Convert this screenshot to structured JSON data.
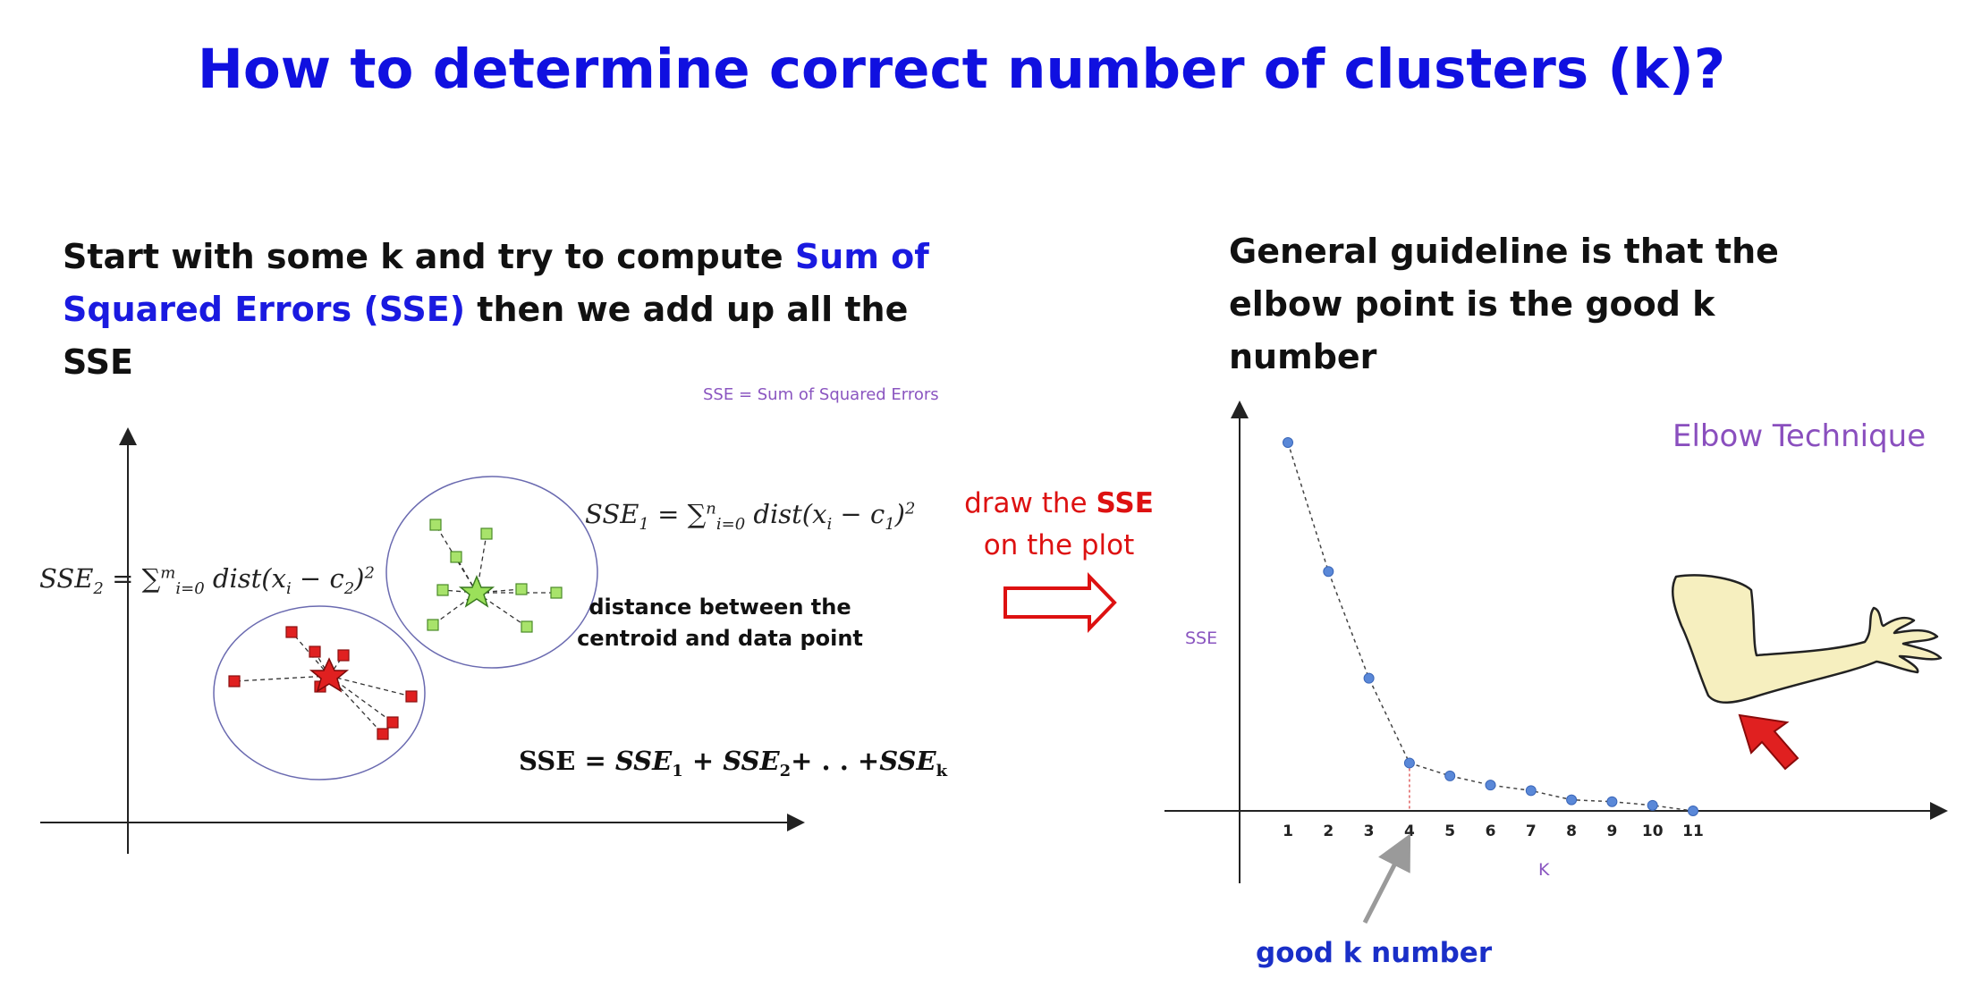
{
  "title": "How to determine correct number of clusters (k)?",
  "left_text": {
    "part1": "Start with some k and try to compute ",
    "part2_highlight": "Sum of Squared Errors (SSE)",
    "part3": " then we add up all the SSE"
  },
  "right_text": "General guideline is that the elbow point is the good k number",
  "cluster_figure": {
    "sse_definition": "SSE = Sum of Squared Errors",
    "distance_note": "distance between the centroid and data point",
    "colors": {
      "cluster1": "#9be05a",
      "cluster2": "#e02020",
      "circle": "#6a6ab0"
    }
  },
  "draw_note": {
    "line1": "draw the ",
    "highlight": "SSE",
    "line2": "on the plot"
  },
  "elbow": {
    "technique_label": "Elbow Technique",
    "y_axis_label": "SSE",
    "x_axis_label": "K",
    "good_k_label": "good k number",
    "arrow_icon": "red-arrow-icon",
    "arm_icon": "bent-arm-icon"
  },
  "chart_data": {
    "type": "line",
    "title": "Elbow Technique",
    "xlabel": "K",
    "ylabel": "SSE",
    "x": [
      1,
      2,
      3,
      4,
      5,
      6,
      7,
      8,
      9,
      10,
      11
    ],
    "series": [
      {
        "values": [
          100,
          65,
          36,
          13,
          9.5,
          7,
          5.5,
          3,
          2.5,
          1.5,
          0
        ]
      }
    ],
    "ylim": [
      0,
      110
    ],
    "elbow_k": 4,
    "grid": false,
    "color": "#5a88d8"
  }
}
